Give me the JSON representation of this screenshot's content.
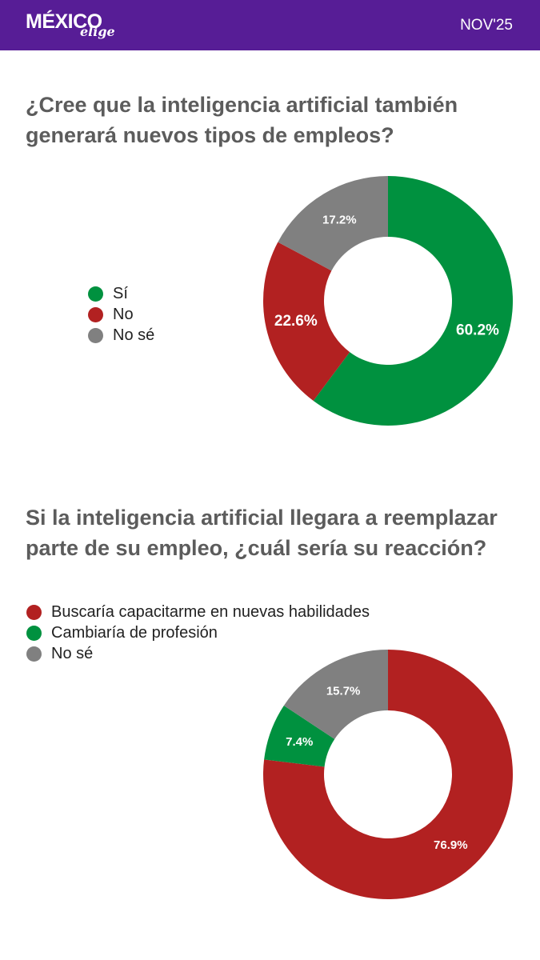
{
  "header": {
    "brand_main": "MÉXICO",
    "brand_sub": "elige",
    "date": "NOV'25",
    "background": "#571d96"
  },
  "chart_data": [
    {
      "type": "pie",
      "title": "¿Cree que la inteligencia artificial también generará nuevos tipos de empleos?",
      "categories": [
        "Sí",
        "No",
        "No sé"
      ],
      "values": [
        60.2,
        22.6,
        17.2
      ],
      "labels": [
        "60.2%",
        "22.6%",
        "17.2%"
      ],
      "colors": [
        "#00913f",
        "#b22121",
        "#808080"
      ],
      "donut": true,
      "legend": "left"
    },
    {
      "type": "pie",
      "title": "Si la inteligencia artificial llegara a reemplazar parte de su empleo, ¿cuál sería su reacción?",
      "categories": [
        "Buscaría capacitarme en nuevas habilidades",
        "Cambiaría de profesión",
        "No sé"
      ],
      "values": [
        76.9,
        7.4,
        15.7
      ],
      "labels": [
        "76.9%",
        "7.4%",
        "15.7%"
      ],
      "colors": [
        "#b22121",
        "#00913f",
        "#808080"
      ],
      "donut": true,
      "legend": "top-left"
    }
  ]
}
